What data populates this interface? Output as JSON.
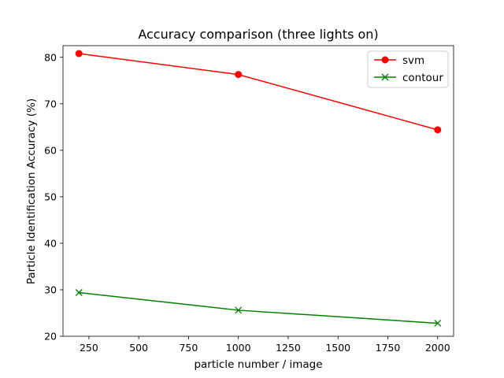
{
  "chart_data": {
    "type": "line",
    "title": "Accuracy comparison (three lights on)",
    "xlabel": "particle number / image",
    "ylabel": "Particle Identification Accuracy (%)",
    "xlim": [
      120,
      2080
    ],
    "ylim": [
      20,
      82.5
    ],
    "x_ticks": [
      250,
      500,
      750,
      1000,
      1250,
      1500,
      1750,
      2000
    ],
    "y_ticks": [
      20,
      30,
      40,
      50,
      60,
      70,
      80
    ],
    "grid": false,
    "legend": "top-right",
    "series": [
      {
        "name": "svm",
        "color": "#ff0000",
        "marker": "circle",
        "x": [
          200,
          1000,
          2000
        ],
        "y": [
          80.8,
          76.3,
          64.4
        ]
      },
      {
        "name": "contour",
        "color": "#008000",
        "marker": "x",
        "x": [
          200,
          1000,
          2000
        ],
        "y": [
          29.4,
          25.6,
          22.8
        ]
      }
    ]
  }
}
